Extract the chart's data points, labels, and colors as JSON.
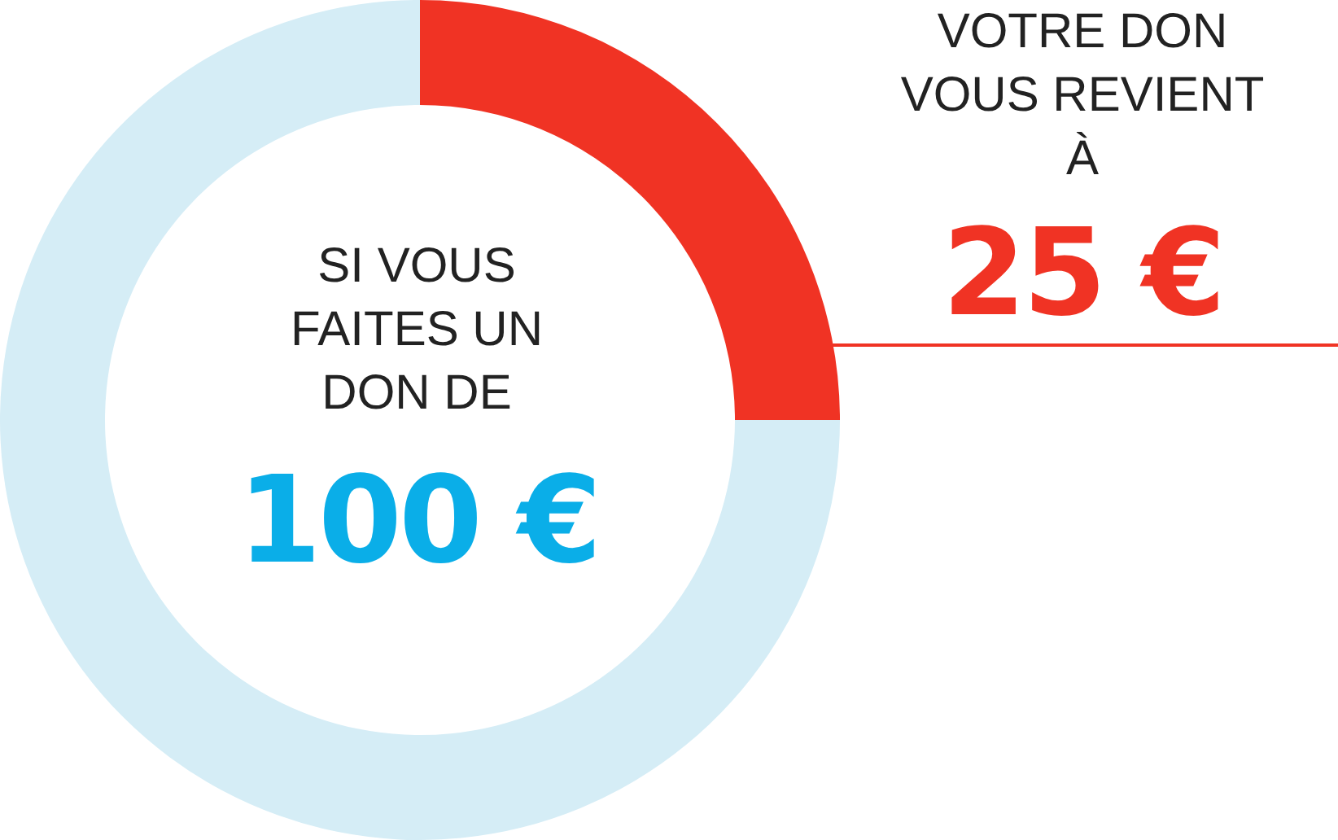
{
  "chart_data": {
    "type": "donut",
    "categories": [
      null,
      null
    ],
    "values": [
      25,
      75
    ],
    "colors": [
      "#f03324",
      "#d5edf6"
    ],
    "value_labels": [
      "25 €",
      null
    ],
    "annotations": [
      "SI VOUS FAITES UN DON DE",
      "100 €",
      "VOTRE DON VOUS REVIENT À"
    ],
    "legend": false
  }
}
